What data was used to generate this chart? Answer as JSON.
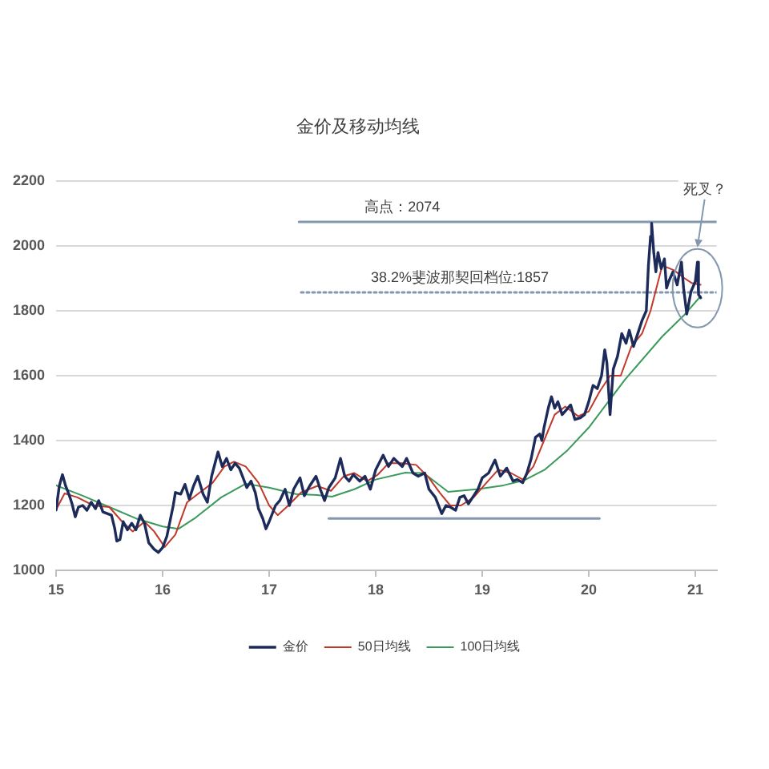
{
  "chart_data": {
    "type": "line",
    "title": "金价及移动均线",
    "xlim": [
      15,
      21.2
    ],
    "xticks": [
      15,
      16,
      17,
      18,
      19,
      20,
      21
    ],
    "ylim": [
      1000,
      2200
    ],
    "yticks": [
      1000,
      1200,
      1400,
      1600,
      1800,
      2000,
      2200
    ],
    "grid": "y",
    "legend": "bottom",
    "series": [
      {
        "name": "金价",
        "color": "#1c2b5a",
        "x": [
          15.0,
          15.03,
          15.06,
          15.09,
          15.12,
          15.15,
          15.18,
          15.21,
          15.25,
          15.29,
          15.33,
          15.37,
          15.4,
          15.44,
          15.48,
          15.52,
          15.55,
          15.57,
          15.6,
          15.63,
          15.67,
          15.71,
          15.75,
          15.79,
          15.83,
          15.87,
          15.92,
          15.96,
          16.0,
          16.04,
          16.1,
          16.12,
          16.17,
          16.21,
          16.25,
          16.29,
          16.33,
          16.38,
          16.42,
          16.46,
          16.5,
          16.52,
          16.56,
          16.6,
          16.64,
          16.68,
          16.72,
          16.75,
          16.79,
          16.83,
          16.87,
          16.9,
          16.94,
          16.97,
          17.0,
          17.06,
          17.1,
          17.15,
          17.19,
          17.23,
          17.29,
          17.33,
          17.38,
          17.44,
          17.48,
          17.52,
          17.56,
          17.62,
          17.67,
          17.71,
          17.75,
          17.79,
          17.85,
          17.9,
          17.95,
          18.0,
          18.07,
          18.12,
          18.17,
          18.25,
          18.29,
          18.35,
          18.4,
          18.46,
          18.5,
          18.56,
          18.62,
          18.66,
          18.7,
          18.75,
          18.79,
          18.83,
          18.87,
          18.92,
          18.96,
          19.0,
          19.06,
          19.12,
          19.17,
          19.23,
          19.29,
          19.33,
          19.38,
          19.42,
          19.46,
          19.5,
          19.54,
          19.56,
          19.58,
          19.62,
          19.65,
          19.68,
          19.71,
          19.75,
          19.79,
          19.83,
          19.87,
          19.92,
          19.96,
          20.0,
          20.04,
          20.08,
          20.12,
          20.15,
          20.17,
          20.2,
          20.23,
          20.27,
          20.31,
          20.35,
          20.38,
          20.42,
          20.46,
          20.5,
          20.54,
          20.56,
          20.58,
          20.59,
          20.61,
          20.63,
          20.65,
          20.68,
          20.71,
          20.73,
          20.75,
          20.79,
          20.83,
          20.87,
          20.89,
          20.92,
          20.96,
          21.0,
          21.02,
          21.03,
          21.05
        ],
        "values": [
          1186,
          1260,
          1295,
          1260,
          1235,
          1205,
          1165,
          1195,
          1200,
          1185,
          1210,
          1190,
          1215,
          1180,
          1175,
          1170,
          1130,
          1090,
          1095,
          1150,
          1125,
          1145,
          1125,
          1170,
          1145,
          1085,
          1065,
          1055,
          1070,
          1105,
          1200,
          1240,
          1235,
          1265,
          1220,
          1260,
          1290,
          1235,
          1210,
          1290,
          1340,
          1365,
          1320,
          1345,
          1310,
          1330,
          1315,
          1290,
          1255,
          1275,
          1240,
          1190,
          1160,
          1128,
          1150,
          1200,
          1215,
          1250,
          1200,
          1250,
          1285,
          1230,
          1260,
          1290,
          1250,
          1215,
          1255,
          1285,
          1345,
          1290,
          1275,
          1295,
          1275,
          1290,
          1250,
          1310,
          1355,
          1320,
          1345,
          1320,
          1345,
          1300,
          1290,
          1300,
          1250,
          1225,
          1175,
          1200,
          1195,
          1185,
          1225,
          1230,
          1205,
          1230,
          1250,
          1285,
          1300,
          1340,
          1290,
          1315,
          1275,
          1280,
          1270,
          1300,
          1345,
          1410,
          1420,
          1400,
          1440,
          1500,
          1535,
          1500,
          1520,
          1480,
          1495,
          1510,
          1465,
          1470,
          1480,
          1520,
          1570,
          1560,
          1600,
          1680,
          1640,
          1480,
          1620,
          1660,
          1730,
          1700,
          1740,
          1690,
          1730,
          1770,
          1800,
          1940,
          2030,
          2070,
          1980,
          1920,
          1980,
          1930,
          1960,
          1870,
          1890,
          1920,
          1880,
          1950,
          1870,
          1790,
          1860,
          1890,
          1950,
          1850,
          1840
        ]
      },
      {
        "name": "50日均线",
        "color": "#c0392b",
        "x": [
          15.0,
          15.08,
          15.2,
          15.35,
          15.5,
          15.62,
          15.72,
          15.83,
          15.92,
          16.02,
          16.12,
          16.23,
          16.35,
          16.47,
          16.58,
          16.67,
          16.78,
          16.9,
          17.0,
          17.08,
          17.18,
          17.3,
          17.45,
          17.58,
          17.7,
          17.8,
          17.92,
          18.02,
          18.12,
          18.25,
          18.38,
          18.5,
          18.6,
          18.7,
          18.8,
          18.92,
          19.04,
          19.15,
          19.27,
          19.38,
          19.48,
          19.58,
          19.68,
          19.78,
          19.9,
          20.0,
          20.1,
          20.2,
          20.3,
          20.4,
          20.5,
          20.58,
          20.69,
          20.8,
          20.9,
          20.97,
          21.05
        ],
        "values": [
          1187,
          1237,
          1225,
          1200,
          1195,
          1150,
          1120,
          1150,
          1120,
          1072,
          1110,
          1210,
          1240,
          1270,
          1320,
          1335,
          1320,
          1270,
          1200,
          1170,
          1200,
          1240,
          1260,
          1245,
          1290,
          1300,
          1275,
          1295,
          1330,
          1330,
          1325,
          1285,
          1240,
          1200,
          1200,
          1225,
          1270,
          1310,
          1300,
          1280,
          1320,
          1400,
          1480,
          1505,
          1475,
          1490,
          1550,
          1600,
          1600,
          1690,
          1730,
          1800,
          1940,
          1925,
          1900,
          1885,
          1880
        ]
      },
      {
        "name": "100日均线",
        "color": "#3a9a5b",
        "x": [
          15.0,
          15.25,
          15.5,
          15.75,
          16.0,
          16.15,
          16.3,
          16.55,
          16.78,
          17.0,
          17.25,
          17.45,
          17.59,
          17.8,
          18.0,
          18.28,
          18.45,
          18.68,
          18.95,
          19.2,
          19.39,
          19.59,
          19.8,
          20.0,
          20.34,
          20.69,
          20.89,
          21.05
        ],
        "values": [
          1262,
          1230,
          1195,
          1160,
          1135,
          1128,
          1160,
          1225,
          1267,
          1255,
          1235,
          1232,
          1227,
          1250,
          1280,
          1301,
          1300,
          1242,
          1250,
          1262,
          1277,
          1311,
          1370,
          1440,
          1588,
          1721,
          1785,
          1845
        ]
      },
      {
        "color": "#8497b0",
        "x": [
          17.28,
          21.2
        ],
        "values": [
          2074,
          2074
        ]
      },
      {
        "color": "#8497b0",
        "line_style": "dotted",
        "x": [
          17.3,
          21.2
        ],
        "values": [
          1857,
          1857
        ]
      },
      {
        "color": "#8497b0",
        "x": [
          17.56,
          20.1
        ],
        "values": [
          1160,
          1160
        ]
      }
    ],
    "annotations": [
      {
        "text": "高点：2074",
        "x": 18.25,
        "y": 2074
      },
      {
        "text": "38.2%斐波那契回档位:1857",
        "x": 18.79,
        "y": 1857
      },
      "死叉？"
    ]
  }
}
